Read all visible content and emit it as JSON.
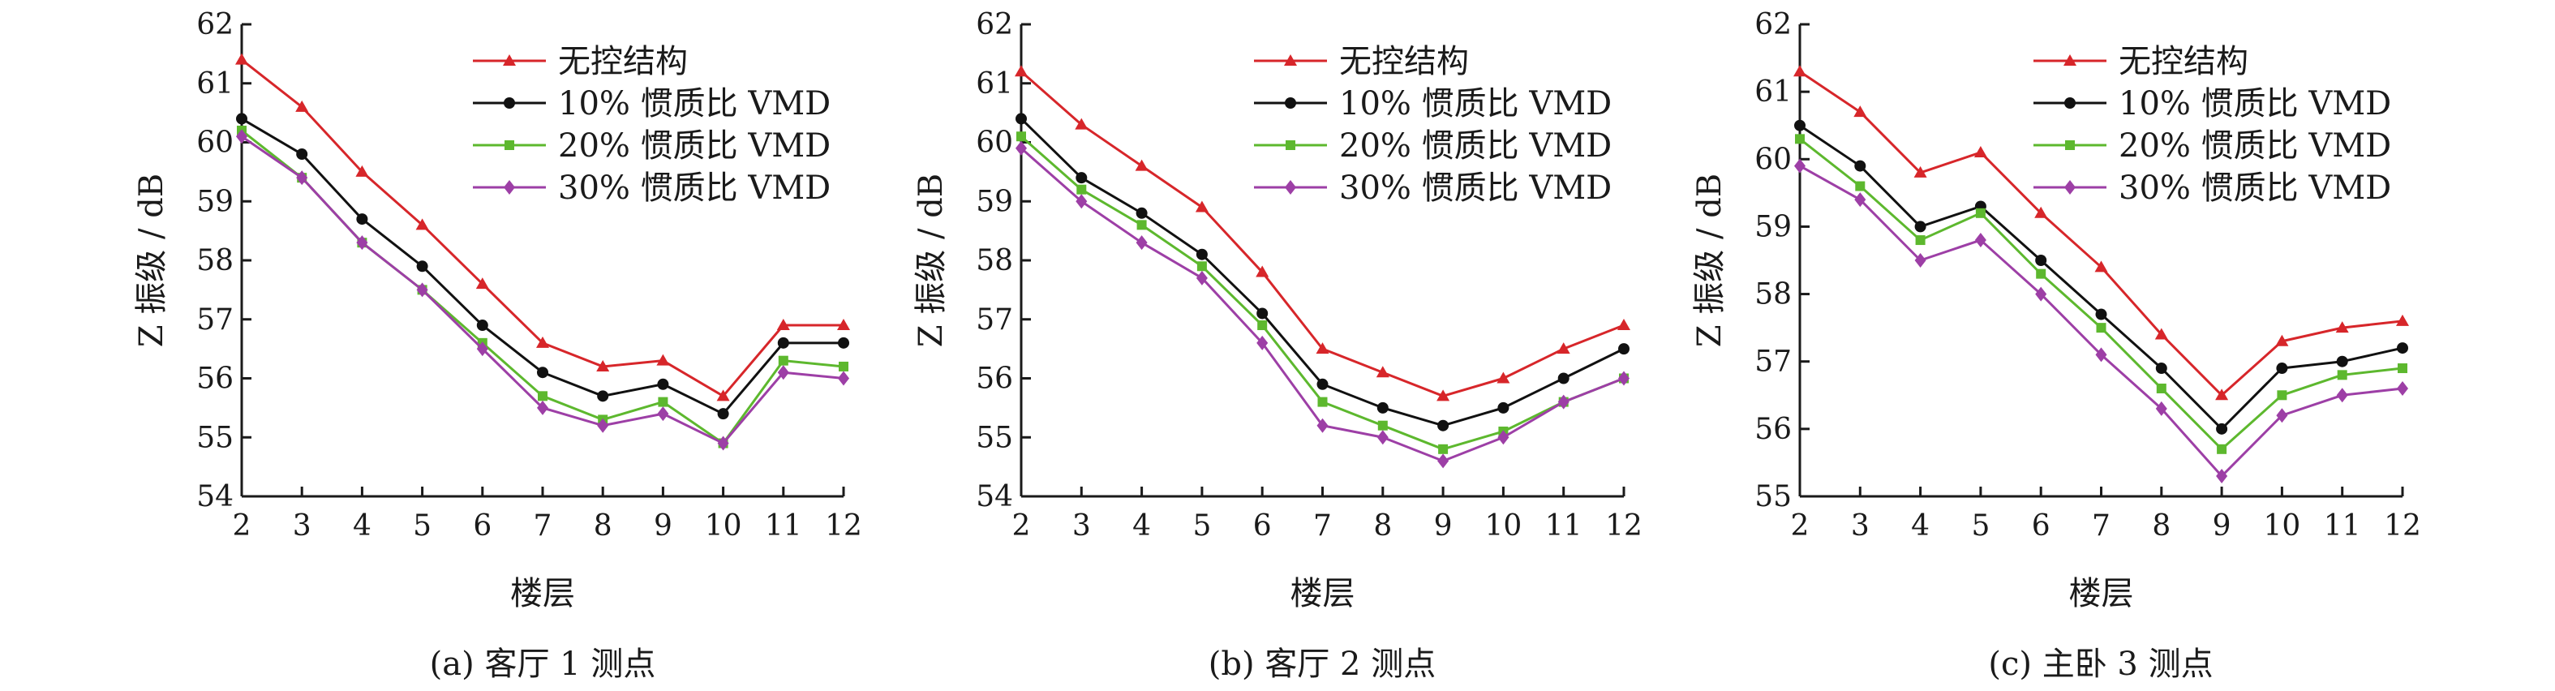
{
  "chart_data": [
    {
      "type": "line",
      "caption": "(a) 客厅 1 测点",
      "xlabel": "楼层",
      "ylabel": "Z 振级 / dB",
      "x": [
        2,
        3,
        4,
        5,
        6,
        7,
        8,
        9,
        10,
        11,
        12
      ],
      "xlim": [
        2,
        12
      ],
      "ylim": [
        54,
        62
      ],
      "yticks": [
        54,
        55,
        56,
        57,
        58,
        59,
        60,
        61,
        62
      ],
      "grid": false,
      "legend": "top-right",
      "series": [
        {
          "name": "无控结构",
          "color": "#d7262a",
          "marker": "triangle",
          "values": [
            61.4,
            60.6,
            59.5,
            58.6,
            57.6,
            56.6,
            56.2,
            56.3,
            55.7,
            56.9,
            56.9
          ]
        },
        {
          "name": "10% 惯质比 VMD",
          "color": "#111111",
          "marker": "circle",
          "values": [
            60.4,
            59.8,
            58.7,
            57.9,
            56.9,
            56.1,
            55.7,
            55.9,
            55.4,
            56.6,
            56.6
          ]
        },
        {
          "name": "20% 惯质比 VMD",
          "color": "#5db82e",
          "marker": "square",
          "values": [
            60.2,
            59.4,
            58.3,
            57.5,
            56.6,
            55.7,
            55.3,
            55.6,
            54.9,
            56.3,
            56.2
          ]
        },
        {
          "name": "30% 惯质比 VMD",
          "color": "#9d3fa6",
          "marker": "diamond",
          "values": [
            60.1,
            59.4,
            58.3,
            57.5,
            56.5,
            55.5,
            55.2,
            55.4,
            54.9,
            56.1,
            56.0
          ]
        }
      ]
    },
    {
      "type": "line",
      "caption": "(b) 客厅 2 测点",
      "xlabel": "楼层",
      "ylabel": "Z 振级 / dB",
      "x": [
        2,
        3,
        4,
        5,
        6,
        7,
        8,
        9,
        10,
        11,
        12
      ],
      "xlim": [
        2,
        12
      ],
      "ylim": [
        54,
        62
      ],
      "yticks": [
        54,
        55,
        56,
        57,
        58,
        59,
        60,
        61,
        62
      ],
      "grid": false,
      "legend": "top-right",
      "series": [
        {
          "name": "无控结构",
          "color": "#d7262a",
          "marker": "triangle",
          "values": [
            61.2,
            60.3,
            59.6,
            58.9,
            57.8,
            56.5,
            56.1,
            55.7,
            56.0,
            56.5,
            56.9
          ]
        },
        {
          "name": "10% 惯质比 VMD",
          "color": "#111111",
          "marker": "circle",
          "values": [
            60.4,
            59.4,
            58.8,
            58.1,
            57.1,
            55.9,
            55.5,
            55.2,
            55.5,
            56.0,
            56.5
          ]
        },
        {
          "name": "20% 惯质比 VMD",
          "color": "#5db82e",
          "marker": "square",
          "values": [
            60.1,
            59.2,
            58.6,
            57.9,
            56.9,
            55.6,
            55.2,
            54.8,
            55.1,
            55.6,
            56.0
          ]
        },
        {
          "name": "30% 惯质比 VMD",
          "color": "#9d3fa6",
          "marker": "diamond",
          "values": [
            59.9,
            59.0,
            58.3,
            57.7,
            56.6,
            55.2,
            55.0,
            54.6,
            55.0,
            55.6,
            56.0
          ]
        }
      ]
    },
    {
      "type": "line",
      "caption": "(c) 主卧 3 测点",
      "xlabel": "楼层",
      "ylabel": "Z 振级 / dB",
      "x": [
        2,
        3,
        4,
        5,
        6,
        7,
        8,
        9,
        10,
        11,
        12
      ],
      "xlim": [
        2,
        12
      ],
      "ylim": [
        55,
        62
      ],
      "yticks": [
        55,
        56,
        57,
        58,
        59,
        60,
        61,
        62
      ],
      "grid": false,
      "legend": "top-right",
      "series": [
        {
          "name": "无控结构",
          "color": "#d7262a",
          "marker": "triangle",
          "values": [
            61.3,
            60.7,
            59.8,
            60.1,
            59.2,
            58.4,
            57.4,
            56.5,
            57.3,
            57.5,
            57.6
          ]
        },
        {
          "name": "10% 惯质比 VMD",
          "color": "#111111",
          "marker": "circle",
          "values": [
            60.5,
            59.9,
            59.0,
            59.3,
            58.5,
            57.7,
            56.9,
            56.0,
            56.9,
            57.0,
            57.2
          ]
        },
        {
          "name": "20% 惯质比 VMD",
          "color": "#5db82e",
          "marker": "square",
          "values": [
            60.3,
            59.6,
            58.8,
            59.2,
            58.3,
            57.5,
            56.6,
            55.7,
            56.5,
            56.8,
            56.9
          ]
        },
        {
          "name": "30% 惯质比 VMD",
          "color": "#9d3fa6",
          "marker": "diamond",
          "values": [
            59.9,
            59.4,
            58.5,
            58.8,
            58.0,
            57.1,
            56.3,
            55.3,
            56.2,
            56.5,
            56.6
          ]
        }
      ]
    }
  ]
}
